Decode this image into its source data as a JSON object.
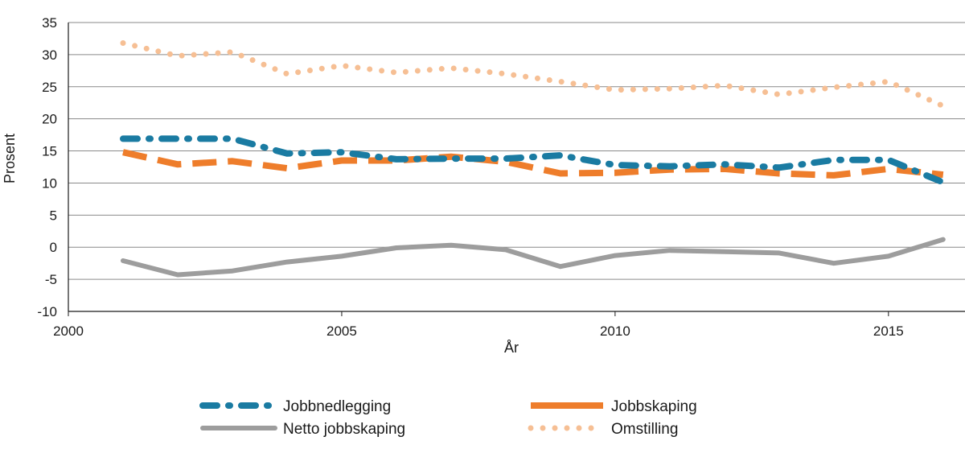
{
  "chart_data": {
    "type": "line",
    "title": "",
    "xlabel": "År",
    "ylabel": "Prosent",
    "xlim": [
      2000,
      2016.4
    ],
    "ylim": [
      -10,
      35
    ],
    "xticks": [
      2000,
      2005,
      2010,
      2015
    ],
    "yticks": [
      -10,
      -5,
      0,
      5,
      10,
      15,
      20,
      25,
      30,
      35
    ],
    "x": [
      2001,
      2002,
      2003,
      2004,
      2005,
      2006,
      2007,
      2008,
      2009,
      2010,
      2011,
      2012,
      2013,
      2014,
      2015,
      2016
    ],
    "grid": true,
    "legend_position": "bottom",
    "series": [
      {
        "name": "Jobbnedlegging",
        "style": "dash-dot",
        "color": "#1a7ba2",
        "values": [
          16.9,
          16.9,
          16.9,
          14.6,
          14.8,
          13.7,
          13.8,
          13.8,
          14.3,
          12.8,
          12.6,
          12.9,
          12.4,
          13.6,
          13.6,
          10.1
        ]
      },
      {
        "name": "Jobbskaping",
        "style": "dash",
        "color": "#ee7d2b",
        "values": [
          14.8,
          12.9,
          13.4,
          12.3,
          13.5,
          13.5,
          14.1,
          13.3,
          11.5,
          11.6,
          12.1,
          12.2,
          11.5,
          11.2,
          12.2,
          11.3
        ]
      },
      {
        "name": "Netto jobbskaping",
        "style": "solid",
        "color": "#9d9d9d",
        "values": [
          -2.1,
          -4.3,
          -3.7,
          -2.3,
          -1.4,
          -0.1,
          0.3,
          -0.4,
          -3.0,
          -1.3,
          -0.5,
          -0.7,
          -0.9,
          -2.5,
          -1.4,
          1.2
        ]
      },
      {
        "name": "Omstilling",
        "style": "dot",
        "color": "#f6bf94",
        "values": [
          31.8,
          29.8,
          30.4,
          27.0,
          28.3,
          27.2,
          27.9,
          27.0,
          25.8,
          24.5,
          24.7,
          25.2,
          23.8,
          24.9,
          25.8,
          22.0
        ]
      }
    ]
  }
}
